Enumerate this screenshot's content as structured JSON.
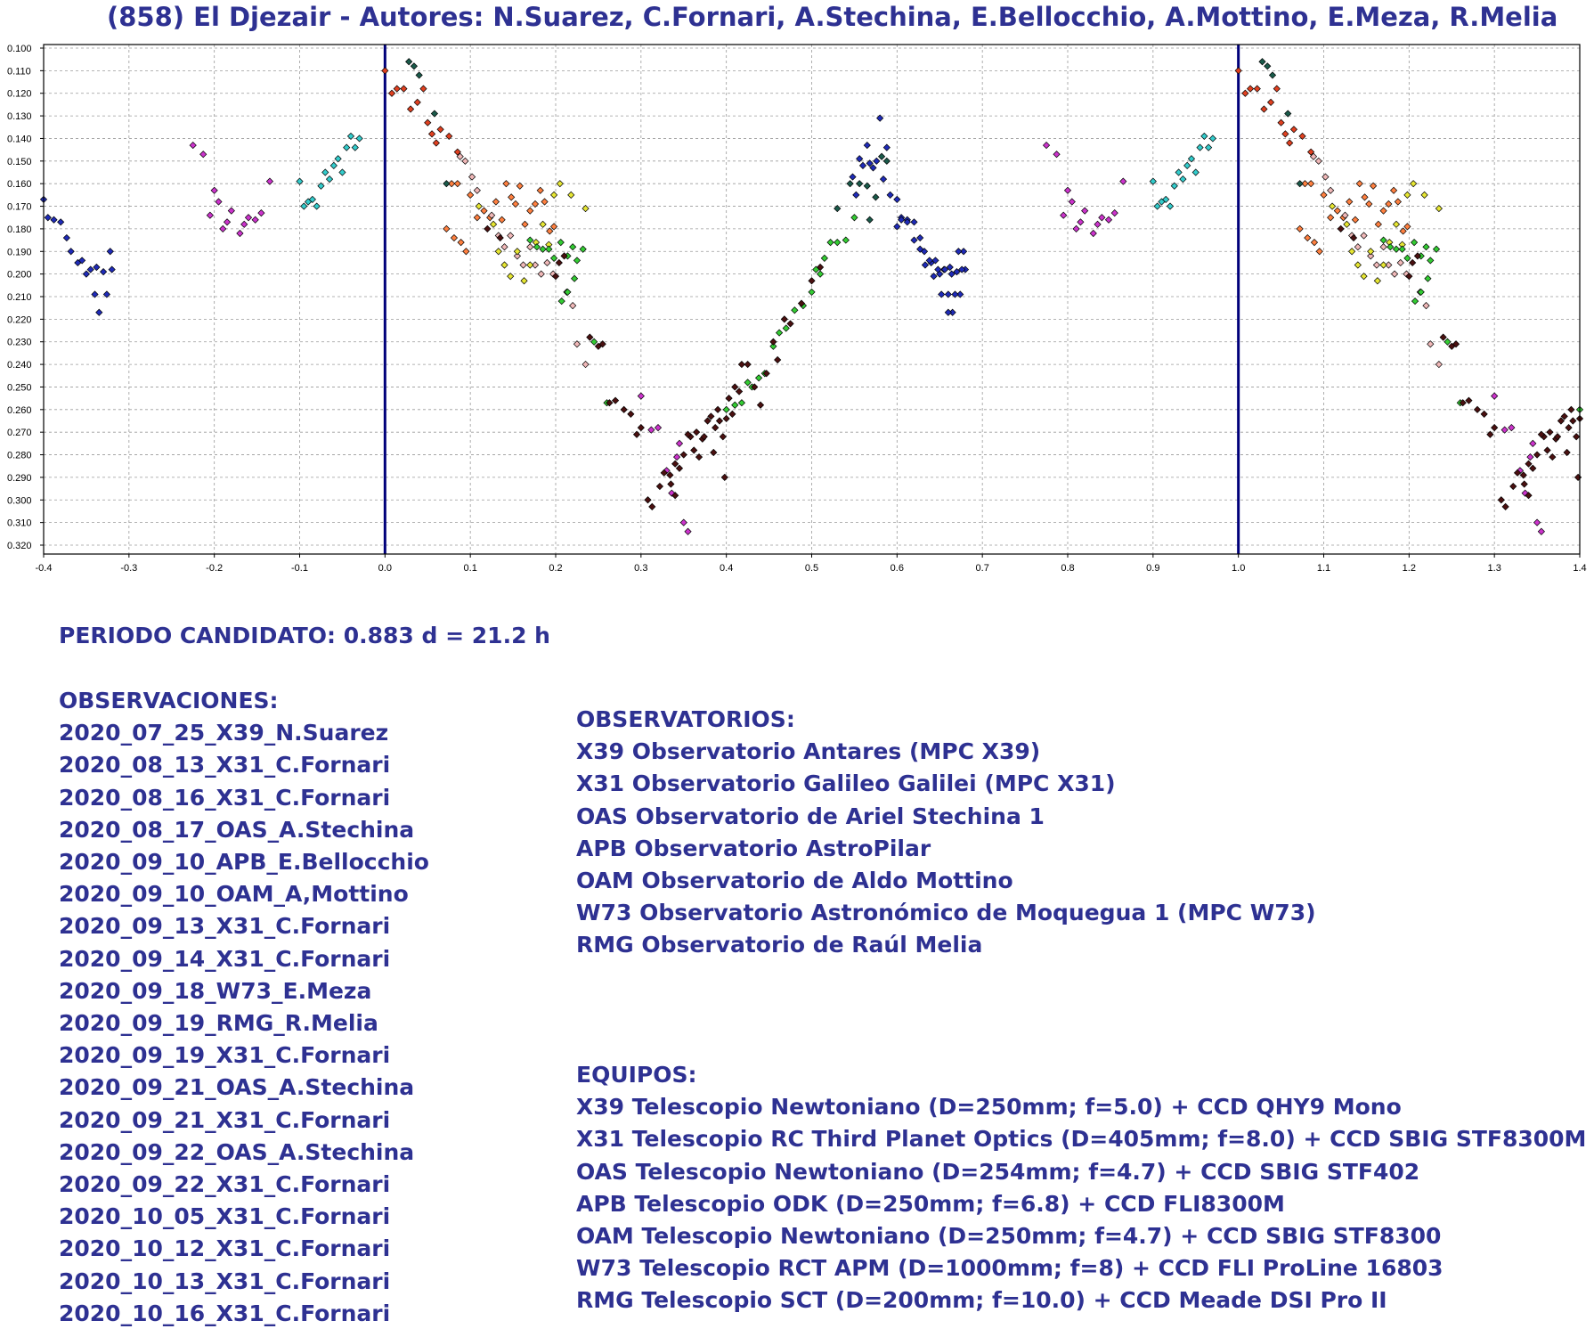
{
  "title": "(858) El Djezair - Autores: N.Suarez, C.Fornari, A.Stechina, E.Bellocchio, A.Mottino, E.Meza, R.Melia",
  "colors": {
    "text": "#2e3192",
    "zero_lines": "#00007a",
    "grid": "#9a9a9a"
  },
  "chart_data": {
    "type": "scatter",
    "title": "(858) El Djezair - Autores: N.Suarez, C.Fornari, A.Stechina, E.Bellocchio, A.Mottino, E.Meza, R.Melia",
    "xlabel": "",
    "ylabel": "",
    "xlim": [
      -0.4,
      1.4
    ],
    "ylim": [
      0.095,
      0.325
    ],
    "y_inverted": true,
    "grid": true,
    "x_ticks": [
      "-0.4",
      "-0.3",
      "-0.2",
      "-0.1",
      "0.0",
      "0.1",
      "0.2",
      "0.3",
      "0.4",
      "0.5",
      "0.6",
      "0.7",
      "0.8",
      "0.9",
      "1.0",
      "1.1",
      "1.2",
      "1.3",
      "1.4"
    ],
    "y_ticks": [
      "0.100",
      "0.110",
      "0.120",
      "0.130",
      "0.140",
      "0.150",
      "0.160",
      "0.170",
      "0.180",
      "0.190",
      "0.200",
      "0.210",
      "0.220",
      "0.230",
      "0.240",
      "0.250",
      "0.260",
      "0.270",
      "0.280",
      "0.290",
      "0.300",
      "0.310",
      "0.320"
    ],
    "vertical_lines_x": [
      0.0,
      1.0
    ],
    "phase_repeat": 1.0,
    "series": [
      {
        "color": "#1f2bb8",
        "points": [
          [
            -0.4,
            0.167
          ],
          [
            -0.395,
            0.175
          ],
          [
            -0.388,
            0.176
          ],
          [
            -0.38,
            0.177
          ],
          [
            -0.373,
            0.184
          ],
          [
            -0.368,
            0.19
          ],
          [
            -0.36,
            0.195
          ],
          [
            -0.355,
            0.194
          ],
          [
            -0.35,
            0.2
          ],
          [
            -0.345,
            0.198
          ],
          [
            -0.34,
            0.209
          ],
          [
            -0.338,
            0.197
          ],
          [
            -0.335,
            0.217
          ],
          [
            -0.33,
            0.199
          ],
          [
            -0.326,
            0.209
          ],
          [
            -0.322,
            0.19
          ],
          [
            -0.32,
            0.198
          ],
          [
            0.548,
            0.157
          ],
          [
            0.552,
            0.165
          ],
          [
            0.556,
            0.149
          ],
          [
            0.56,
            0.152
          ],
          [
            0.565,
            0.143
          ],
          [
            0.568,
            0.151
          ],
          [
            0.572,
            0.153
          ],
          [
            0.576,
            0.15
          ],
          [
            0.58,
            0.131
          ],
          [
            0.584,
            0.158
          ],
          [
            0.588,
            0.144
          ],
          [
            0.592,
            0.165
          ],
          [
            0.6,
            0.179
          ],
          [
            0.605,
            0.176
          ],
          [
            0.612,
            0.177
          ],
          [
            0.62,
            0.185
          ],
          [
            0.627,
            0.189
          ],
          [
            0.633,
            0.196
          ],
          [
            0.638,
            0.194
          ],
          [
            0.643,
            0.201
          ],
          [
            0.648,
            0.198
          ],
          [
            0.652,
            0.209
          ],
          [
            0.656,
            0.198
          ],
          [
            0.66,
            0.217
          ],
          [
            0.664,
            0.2
          ],
          [
            0.668,
            0.209
          ],
          [
            0.672,
            0.19
          ],
          [
            0.676,
            0.198
          ]
        ]
      },
      {
        "color": "#cc33cc",
        "points": [
          [
            -0.225,
            0.143
          ],
          [
            -0.213,
            0.147
          ],
          [
            -0.205,
            0.174
          ],
          [
            -0.2,
            0.163
          ],
          [
            -0.195,
            0.168
          ],
          [
            -0.19,
            0.18
          ],
          [
            -0.185,
            0.177
          ],
          [
            -0.18,
            0.172
          ],
          [
            -0.17,
            0.182
          ],
          [
            -0.165,
            0.178
          ],
          [
            -0.16,
            0.175
          ],
          [
            -0.152,
            0.176
          ],
          [
            -0.145,
            0.173
          ],
          [
            -0.135,
            0.159
          ],
          [
            0.3,
            0.254
          ],
          [
            0.312,
            0.269
          ],
          [
            0.32,
            0.268
          ],
          [
            0.33,
            0.287
          ],
          [
            0.336,
            0.297
          ],
          [
            0.342,
            0.281
          ],
          [
            0.345,
            0.275
          ],
          [
            0.35,
            0.31
          ],
          [
            0.355,
            0.314
          ]
        ]
      },
      {
        "color": "#33cccc",
        "points": [
          [
            -0.1,
            0.159
          ],
          [
            -0.095,
            0.17
          ],
          [
            -0.09,
            0.168
          ],
          [
            -0.085,
            0.167
          ],
          [
            -0.08,
            0.17
          ],
          [
            -0.075,
            0.161
          ],
          [
            -0.07,
            0.155
          ],
          [
            -0.065,
            0.158
          ],
          [
            -0.06,
            0.152
          ],
          [
            -0.055,
            0.149
          ],
          [
            -0.05,
            0.155
          ],
          [
            -0.045,
            0.144
          ],
          [
            -0.04,
            0.139
          ],
          [
            -0.035,
            0.144
          ],
          [
            -0.03,
            0.14
          ]
        ]
      },
      {
        "color": "#e04020",
        "points": [
          [
            0.0,
            0.11
          ],
          [
            0.008,
            0.12
          ],
          [
            0.014,
            0.118
          ],
          [
            0.022,
            0.118
          ],
          [
            0.03,
            0.127
          ],
          [
            0.038,
            0.124
          ],
          [
            0.045,
            0.118
          ],
          [
            0.05,
            0.133
          ],
          [
            0.055,
            0.138
          ],
          [
            0.06,
            0.142
          ],
          [
            0.065,
            0.136
          ],
          [
            0.075,
            0.139
          ],
          [
            0.085,
            0.146
          ]
        ]
      },
      {
        "color": "#ff8040",
        "points": [
          [
            0.078,
            0.16
          ],
          [
            0.085,
            0.16
          ],
          [
            0.1,
            0.165
          ],
          [
            0.108,
            0.175
          ],
          [
            0.116,
            0.172
          ],
          [
            0.123,
            0.175
          ],
          [
            0.13,
            0.168
          ],
          [
            0.137,
            0.176
          ],
          [
            0.142,
            0.16
          ],
          [
            0.148,
            0.166
          ],
          [
            0.153,
            0.169
          ],
          [
            0.158,
            0.161
          ],
          [
            0.164,
            0.178
          ],
          [
            0.17,
            0.172
          ],
          [
            0.176,
            0.169
          ],
          [
            0.182,
            0.163
          ],
          [
            0.187,
            0.168
          ],
          [
            0.193,
            0.181
          ],
          [
            0.198,
            0.179
          ],
          [
            0.072,
            0.18
          ],
          [
            0.081,
            0.184
          ],
          [
            0.089,
            0.186
          ],
          [
            0.095,
            0.19
          ]
        ]
      },
      {
        "color": "#f0b8b8",
        "points": [
          [
            0.088,
            0.148
          ],
          [
            0.094,
            0.15
          ],
          [
            0.102,
            0.157
          ],
          [
            0.108,
            0.163
          ],
          [
            0.125,
            0.174
          ],
          [
            0.133,
            0.183
          ],
          [
            0.14,
            0.188
          ],
          [
            0.147,
            0.183
          ],
          [
            0.155,
            0.192
          ],
          [
            0.162,
            0.196
          ],
          [
            0.17,
            0.188
          ],
          [
            0.176,
            0.196
          ],
          [
            0.183,
            0.2
          ],
          [
            0.19,
            0.195
          ],
          [
            0.197,
            0.2
          ],
          [
            0.213,
            0.208
          ],
          [
            0.22,
            0.214
          ],
          [
            0.225,
            0.231
          ],
          [
            0.235,
            0.24
          ]
        ]
      },
      {
        "color": "#e6e633",
        "points": [
          [
            0.11,
            0.17
          ],
          [
            0.127,
            0.178
          ],
          [
            0.133,
            0.19
          ],
          [
            0.14,
            0.196
          ],
          [
            0.147,
            0.201
          ],
          [
            0.155,
            0.19
          ],
          [
            0.163,
            0.203
          ],
          [
            0.17,
            0.196
          ],
          [
            0.177,
            0.186
          ],
          [
            0.185,
            0.178
          ],
          [
            0.192,
            0.187
          ],
          [
            0.198,
            0.165
          ],
          [
            0.205,
            0.16
          ],
          [
            0.218,
            0.165
          ],
          [
            0.235,
            0.171
          ]
        ]
      },
      {
        "color": "#33cc33",
        "points": [
          [
            0.17,
            0.185
          ],
          [
            0.178,
            0.188
          ],
          [
            0.185,
            0.189
          ],
          [
            0.192,
            0.189
          ],
          [
            0.198,
            0.193
          ],
          [
            0.206,
            0.186
          ],
          [
            0.214,
            0.192
          ],
          [
            0.22,
            0.188
          ],
          [
            0.225,
            0.194
          ],
          [
            0.232,
            0.189
          ],
          [
            0.222,
            0.202
          ],
          [
            0.214,
            0.208
          ],
          [
            0.207,
            0.212
          ],
          [
            0.245,
            0.23
          ],
          [
            0.26,
            0.257
          ],
          [
            0.4,
            0.26
          ],
          [
            0.41,
            0.258
          ],
          [
            0.418,
            0.257
          ],
          [
            0.425,
            0.248
          ],
          [
            0.43,
            0.25
          ],
          [
            0.438,
            0.246
          ],
          [
            0.445,
            0.244
          ],
          [
            0.455,
            0.232
          ],
          [
            0.462,
            0.226
          ],
          [
            0.47,
            0.224
          ],
          [
            0.48,
            0.216
          ],
          [
            0.49,
            0.214
          ],
          [
            0.5,
            0.208
          ],
          [
            0.505,
            0.198
          ],
          [
            0.51,
            0.2
          ],
          [
            0.515,
            0.193
          ],
          [
            0.522,
            0.186
          ],
          [
            0.53,
            0.186
          ],
          [
            0.54,
            0.185
          ],
          [
            0.55,
            0.175
          ]
        ]
      },
      {
        "color": "#4a1010",
        "points": [
          [
            0.12,
            0.18
          ],
          [
            0.135,
            0.184
          ],
          [
            0.2,
            0.201
          ],
          [
            0.204,
            0.195
          ],
          [
            0.21,
            0.192
          ],
          [
            0.24,
            0.228
          ],
          [
            0.25,
            0.232
          ],
          [
            0.255,
            0.231
          ],
          [
            0.263,
            0.257
          ],
          [
            0.27,
            0.256
          ],
          [
            0.28,
            0.26
          ],
          [
            0.288,
            0.262
          ],
          [
            0.295,
            0.271
          ],
          [
            0.3,
            0.268
          ],
          [
            0.308,
            0.3
          ],
          [
            0.313,
            0.303
          ],
          [
            0.322,
            0.294
          ],
          [
            0.327,
            0.288
          ],
          [
            0.334,
            0.289
          ],
          [
            0.34,
            0.284
          ],
          [
            0.345,
            0.286
          ],
          [
            0.35,
            0.28
          ],
          [
            0.358,
            0.272
          ],
          [
            0.362,
            0.278
          ],
          [
            0.368,
            0.281
          ],
          [
            0.372,
            0.273
          ],
          [
            0.378,
            0.265
          ],
          [
            0.382,
            0.263
          ],
          [
            0.387,
            0.268
          ],
          [
            0.39,
            0.26
          ],
          [
            0.396,
            0.272
          ],
          [
            0.4,
            0.264
          ],
          [
            0.403,
            0.255
          ],
          [
            0.407,
            0.262
          ],
          [
            0.41,
            0.25
          ],
          [
            0.415,
            0.252
          ],
          [
            0.418,
            0.24
          ],
          [
            0.425,
            0.24
          ],
          [
            0.433,
            0.25
          ],
          [
            0.44,
            0.258
          ],
          [
            0.447,
            0.244
          ],
          [
            0.455,
            0.23
          ],
          [
            0.46,
            0.238
          ],
          [
            0.468,
            0.22
          ],
          [
            0.475,
            0.222
          ],
          [
            0.488,
            0.213
          ],
          [
            0.5,
            0.203
          ],
          [
            0.51,
            0.197
          ],
          [
            0.355,
            0.271
          ],
          [
            0.365,
            0.27
          ],
          [
            0.374,
            0.272
          ],
          [
            0.385,
            0.279
          ],
          [
            0.392,
            0.265
          ],
          [
            0.398,
            0.29
          ],
          [
            0.34,
            0.298
          ],
          [
            0.335,
            0.293
          ]
        ]
      },
      {
        "color": "#1a5a4a",
        "points": [
          [
            0.028,
            0.106
          ],
          [
            0.034,
            0.108
          ],
          [
            0.04,
            0.112
          ],
          [
            0.058,
            0.129
          ],
          [
            0.072,
            0.16
          ],
          [
            0.53,
            0.171
          ],
          [
            0.545,
            0.16
          ],
          [
            0.556,
            0.16
          ],
          [
            0.565,
            0.161
          ],
          [
            0.568,
            0.176
          ],
          [
            0.575,
            0.166
          ],
          [
            0.582,
            0.148
          ],
          [
            0.588,
            0.15
          ]
        ]
      }
    ]
  },
  "period": "PERIODO CANDIDATO: 0.883 d = 21.2  h",
  "observaciones": {
    "heading": "OBSERVACIONES:",
    "items": [
      "2020_07_25_X39_N.Suarez",
      "2020_08_13_X31_C.Fornari",
      "2020_08_16_X31_C.Fornari",
      "2020_08_17_OAS_A.Stechina",
      "2020_09_10_APB_E.Bellocchio",
      "2020_09_10_OAM_A,Mottino",
      "2020_09_13_X31_C.Fornari",
      "2020_09_14_X31_C.Fornari",
      "2020_09_18_W73_E.Meza",
      "2020_09_19_RMG_R.Melia",
      "2020_09_19_X31_C.Fornari",
      "2020_09_21_OAS_A.Stechina",
      "2020_09_21_X31_C.Fornari",
      "2020_09_22_OAS_A.Stechina",
      "2020_09_22_X31_C.Fornari",
      "2020_10_05_X31_C.Fornari",
      "2020_10_12_X31_C.Fornari",
      "2020_10_13_X31_C.Fornari",
      "2020_10_16_X31_C.Fornari"
    ]
  },
  "observatorios": {
    "heading": "OBSERVATORIOS:",
    "items": [
      "X39 Observatorio Antares (MPC X39)",
      "X31 Observatorio Galileo Galilei (MPC X31)",
      "OAS Observatorio de Ariel Stechina 1",
      "APB Observatorio AstroPilar",
      "OAM Observatorio de Aldo Mottino",
      "W73 Observatorio Astronómico de Moquegua 1 (MPC W73)",
      "RMG Observatorio de Raúl Melia"
    ]
  },
  "equipos": {
    "heading": "EQUIPOS:",
    "items": [
      "X39 Telescopio Newtoniano (D=250mm; f=5.0) + CCD QHY9 Mono",
      "X31 Telescopio RC Third Planet Optics (D=405mm; f=8.0) + CCD SBIG STF8300M",
      "OAS Telescopio Newtoniano (D=254mm; f=4.7) + CCD SBIG STF402",
      "APB Telescopio ODK (D=250mm; f=6.8) + CCD FLI8300M",
      "OAM Telescopio Newtoniano (D=250mm; f=4.7) + CCD SBIG STF8300",
      "W73 Telescopio RCT APM (D=1000mm; f=8) + CCD FLI ProLine 16803",
      "RMG Telescopio SCT (D=200mm; f=10.0) + CCD Meade DSI Pro II"
    ]
  }
}
